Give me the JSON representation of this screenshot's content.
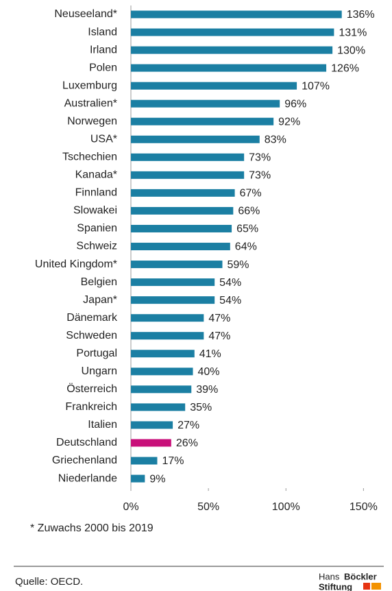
{
  "chart_data": {
    "type": "bar",
    "orientation": "horizontal",
    "categories": [
      "Neuseeland*",
      "Island",
      "Irland",
      "Polen",
      "Luxemburg",
      "Australien*",
      "Norwegen",
      "USA*",
      "Tschechien",
      "Kanada*",
      "Finnland",
      "Slowakei",
      "Spanien",
      "Schweiz",
      "United Kingdom*",
      "Belgien",
      "Japan*",
      "Dänemark",
      "Schweden",
      "Portugal",
      "Ungarn",
      "Österreich",
      "Frankreich",
      "Italien",
      "Deutschland",
      "Griechenland",
      "Niederlande"
    ],
    "values": [
      136,
      131,
      130,
      126,
      107,
      96,
      92,
      83,
      73,
      73,
      67,
      66,
      65,
      64,
      59,
      54,
      54,
      47,
      47,
      41,
      40,
      39,
      35,
      27,
      26,
      17,
      9
    ],
    "value_labels": [
      "136%",
      "131%",
      "130%",
      "126%",
      "107%",
      "96%",
      "92%",
      "83%",
      "73%",
      "73%",
      "67%",
      "66%",
      "65%",
      "64%",
      "59%",
      "54%",
      "54%",
      "47%",
      "47%",
      "41%",
      "40%",
      "39%",
      "35%",
      "27%",
      "26%",
      "17%",
      "9%"
    ],
    "colors": [
      "#1b7fa3",
      "#1b7fa3",
      "#1b7fa3",
      "#1b7fa3",
      "#1b7fa3",
      "#1b7fa3",
      "#1b7fa3",
      "#1b7fa3",
      "#1b7fa3",
      "#1b7fa3",
      "#1b7fa3",
      "#1b7fa3",
      "#1b7fa3",
      "#1b7fa3",
      "#1b7fa3",
      "#1b7fa3",
      "#1b7fa3",
      "#1b7fa3",
      "#1b7fa3",
      "#1b7fa3",
      "#1b7fa3",
      "#1b7fa3",
      "#1b7fa3",
      "#1b7fa3",
      "#c8107a",
      "#1b7fa3",
      "#1b7fa3"
    ],
    "xlim": [
      0,
      160
    ],
    "xticks": [
      {
        "value": 0,
        "label": "0%"
      },
      {
        "value": 50,
        "label": "50%"
      },
      {
        "value": 100,
        "label": "100%"
      },
      {
        "value": 150,
        "label": "150%"
      }
    ],
    "footnote": "* Zuwachs 2000 bis 2019",
    "source": "Quelle: OECD.",
    "logo": {
      "line1_regular": "Hans",
      "line1_bold": "Böckler",
      "line2": "Stiftung"
    }
  }
}
